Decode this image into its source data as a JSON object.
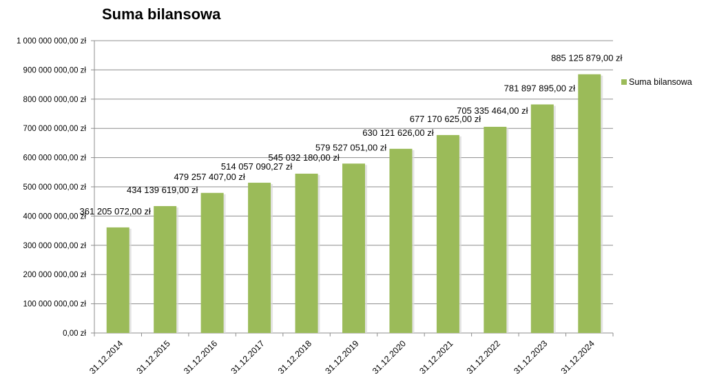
{
  "chart_data": {
    "type": "bar",
    "title": "Suma bilansowa",
    "categories": [
      "31.12.2014",
      "31.12.2015",
      "31.12.2016",
      "31.12.2017",
      "31.12.2018",
      "31.12.2019",
      "31.12.2020",
      "31.12.2021",
      "31.12.2022",
      "31.12.2023",
      "31.12.2024"
    ],
    "series": [
      {
        "name": "Suma bilansowa",
        "color": "#9BBB59",
        "values": [
          361205072.0,
          434139619.0,
          479257407.0,
          514057090.27,
          545032180.0,
          579527051.0,
          630121626.0,
          677170625.0,
          705335464.0,
          781897895.0,
          885125879.0
        ],
        "labels": [
          "361 205 072,00 zł",
          "434 139 619,00 zł",
          "479 257 407,00 zł",
          "514 057 090,27 zł",
          "545 032 180,00 zł",
          "579 527 051,00 zł",
          "630 121 626,00 zł",
          "677 170 625,00 zł",
          "705 335 464,00 zł",
          "781 897 895,00 zł",
          "885 125 879,00 zł"
        ]
      }
    ],
    "ylim": [
      0,
      1000000000
    ],
    "yticks": [
      0,
      100000000,
      200000000,
      300000000,
      400000000,
      500000000,
      600000000,
      700000000,
      800000000,
      900000000,
      1000000000
    ],
    "ytick_labels": [
      "0,00 zł",
      "100 000 000,00 zł",
      "200 000 000,00 zł",
      "300 000 000,00 zł",
      "400 000 000,00 zł",
      "500 000 000,00 zł",
      "600 000 000,00 zł",
      "700 000 000,00 zł",
      "800 000 000,00 zł",
      "900 000 000,00 zł",
      "1 000 000 000,00 zł"
    ],
    "grid": true,
    "legend": "right"
  }
}
